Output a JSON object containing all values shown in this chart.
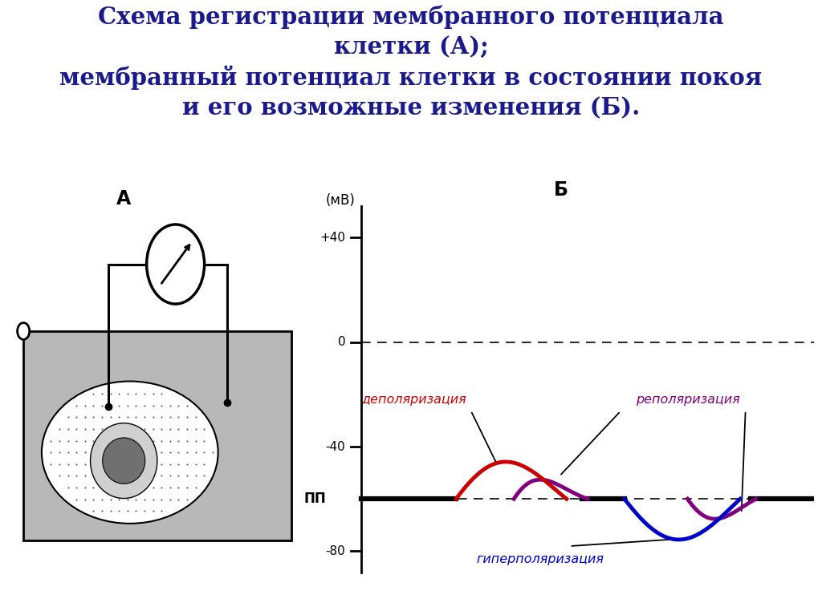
{
  "title_line1": "Схема регистрации мембранного потенциала",
  "title_line2": "клетки (А);",
  "title_line3": "мембранный потенциал клетки в состоянии покоя",
  "title_line4": "и его возможные изменения (Б).",
  "title_color": "#1a1a8c",
  "title_fontsize": 21,
  "label_A": "А",
  "label_B": "Б",
  "ylabel_unit": "(мВ)",
  "yticks": [
    40,
    0,
    -40,
    -80
  ],
  "ytick_labels": [
    "+40",
    "0",
    "-40",
    "-80"
  ],
  "pp_label": "ПП",
  "pp_value": -60,
  "depol_label": "деполяризация",
  "repol_label": "реполяризация",
  "hyperpol_label": "гиперполяризация",
  "depol_color": "#cc0000",
  "repol_color": "#800080",
  "hyperpol_color": "#0000cc",
  "bg_color": "#ffffff",
  "cell_bg": "#b8b8b8",
  "cell_nucleus_outer": "#d0d0d0",
  "cell_nucleus_inner": "#707070"
}
